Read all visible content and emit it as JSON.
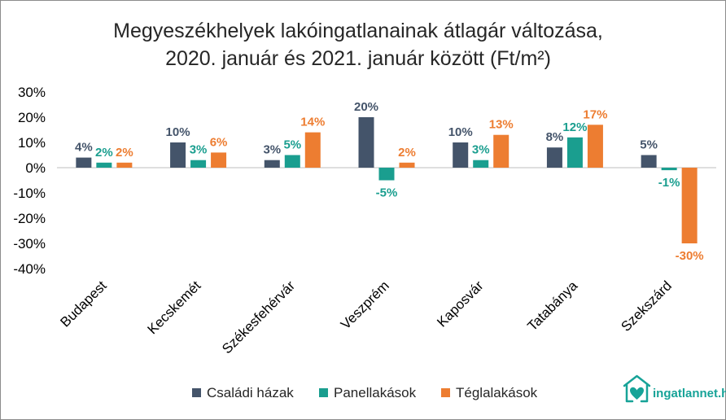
{
  "chart_data": {
    "type": "bar",
    "title_lines": [
      "Megyeszékhelyek lakóingatlanainak átlagár változása,",
      "2020. január és 2021. január között (Ft/m²)"
    ],
    "categories": [
      "Budapest",
      "Kecskemét",
      "Székesfehérvár",
      "Veszprém",
      "Kaposvár",
      "Tatabánya",
      "Szekszárd"
    ],
    "series": [
      {
        "name": "Családi házak",
        "color": "#44546a",
        "values": [
          4,
          10,
          3,
          20,
          10,
          8,
          5
        ]
      },
      {
        "name": "Panellakások",
        "color": "#1a9e8f",
        "values": [
          2,
          3,
          5,
          -5,
          3,
          12,
          -1
        ]
      },
      {
        "name": "Téglalakások",
        "color": "#ed7d31",
        "values": [
          2,
          6,
          14,
          2,
          13,
          17,
          -30
        ]
      }
    ],
    "ylim": [
      -40,
      30
    ],
    "yticks": [
      30,
      20,
      10,
      0,
      -10,
      -20,
      -30,
      -40
    ],
    "ytick_labels": [
      "30%",
      "20%",
      "10%",
      "0%",
      "-10%",
      "-20%",
      "-30%",
      "-40%"
    ],
    "value_suffix": "%",
    "legend_position": "bottom"
  },
  "brand": {
    "name": "ingatlannet.hu",
    "color": "#17a398"
  }
}
